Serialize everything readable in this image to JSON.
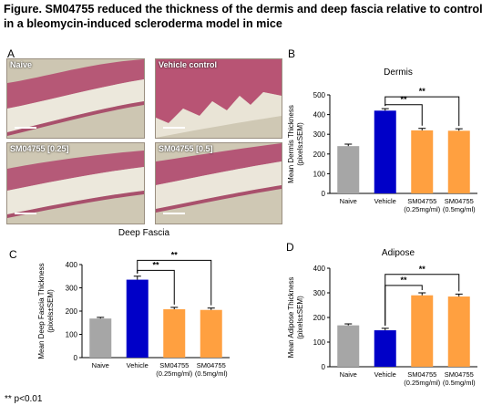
{
  "title": "Figure. SM04755 reduced the thickness of the dermis and deep fascia relative to control in a bleomycin-induced scleroderma model in mice",
  "footnote": "** p<0.01",
  "panel_letters": {
    "a": "A",
    "b": "B",
    "c": "C",
    "d": "D"
  },
  "micrographs": [
    {
      "label": "Naive"
    },
    {
      "label": "Vehicle control"
    },
    {
      "label": "SM04755 [0.25]"
    },
    {
      "label": "SM04755 [0.5]"
    }
  ],
  "colors": {
    "naive": "#a6a6a6",
    "vehicle": "#0000c8",
    "treated": "#ffa040",
    "tissue_pink": "#c0607a",
    "tissue_bg": "#cfc8b4"
  },
  "chart_data": [
    {
      "type": "bar",
      "panel": "B",
      "title": "Dermis",
      "ylabel": "Mean Dermis Thickness (pixels±SEM)",
      "categories": [
        "Naive",
        "Vehicle",
        "SM04755 (0.25mg/ml)",
        "SM04755 (0.5mg/ml)"
      ],
      "values": [
        240,
        420,
        320,
        318
      ],
      "errors": [
        10,
        10,
        10,
        10
      ],
      "ylim": [
        0,
        500
      ],
      "yticks": [
        0,
        100,
        200,
        300,
        400,
        500
      ],
      "significance": [
        "**",
        "**"
      ]
    },
    {
      "type": "bar",
      "panel": "C",
      "title": "Deep Fascia",
      "ylabel": "Mean Deep Fascia Thickness (pixels±SEM)",
      "categories": [
        "Naive",
        "Vehicle",
        "SM04755 (0.25mg/ml)",
        "SM04755 (0.5mg/ml)"
      ],
      "values": [
        168,
        335,
        208,
        205
      ],
      "errors": [
        5,
        15,
        8,
        8
      ],
      "ylim": [
        0,
        400
      ],
      "yticks": [
        0,
        100,
        200,
        300,
        400
      ],
      "significance": [
        "**",
        "**"
      ]
    },
    {
      "type": "bar",
      "panel": "D",
      "title": "Adipose",
      "ylabel": "Mean Adipose Thickness (pixels±SEM)",
      "categories": [
        "Naive",
        "Vehicle",
        "SM04755 (0.25mg/ml)",
        "SM04755 (0.5mg/ml)"
      ],
      "values": [
        168,
        148,
        290,
        285
      ],
      "errors": [
        6,
        8,
        10,
        10
      ],
      "ylim": [
        0,
        400
      ],
      "yticks": [
        0,
        100,
        200,
        300,
        400
      ],
      "significance": [
        "**",
        "**"
      ]
    }
  ]
}
